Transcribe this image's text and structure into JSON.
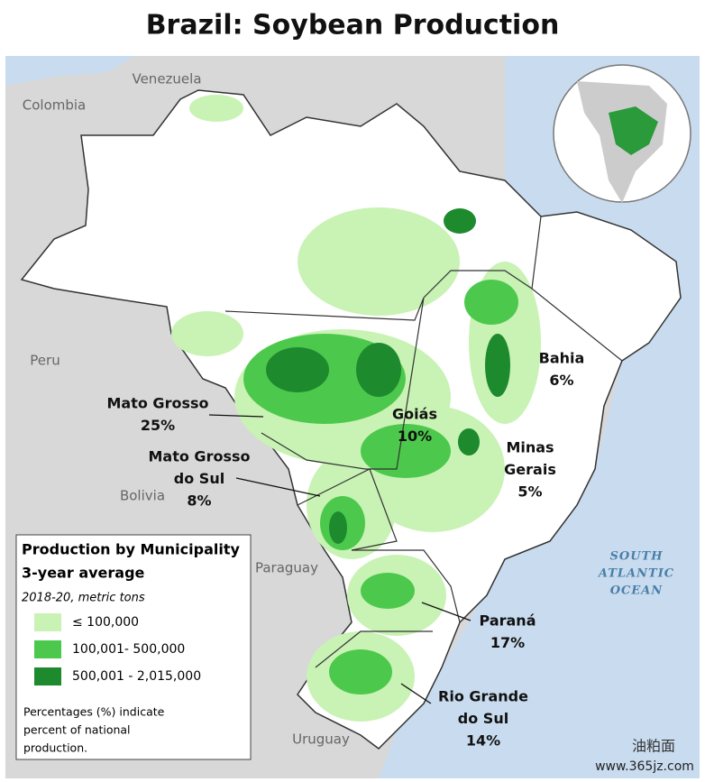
{
  "title": "Brazil: Soybean Production",
  "countries": [
    "Venezuela",
    "Colombia",
    "Peru",
    "Bolivia",
    "Paraguay",
    "Uruguay"
  ],
  "ocean": [
    "SOUTH",
    "ATLANTIC",
    "OCEAN"
  ],
  "states": [
    {
      "name": [
        "Bahia"
      ],
      "share": "6%"
    },
    {
      "name": [
        "Mato Grosso"
      ],
      "share": "25%"
    },
    {
      "name": [
        "Goiás"
      ],
      "share": "10%"
    },
    {
      "name": [
        "Mato Grosso",
        "do Sul"
      ],
      "share": "8%"
    },
    {
      "name": [
        "Minas",
        "Gerais"
      ],
      "share": "5%"
    },
    {
      "name": [
        "Paraná"
      ],
      "share": "17%"
    },
    {
      "name": [
        "Rio Grande",
        "do Sul"
      ],
      "share": "14%"
    }
  ],
  "legend": {
    "title": [
      "Production by Municipality",
      "3-year average"
    ],
    "subtitle": "2018-20, metric tons",
    "items": [
      {
        "label": "≤ 100,000",
        "color": "#c9f2b5"
      },
      {
        "label": "100,001- 500,000",
        "color": "#4cc94c"
      },
      {
        "label": "500,001 - 2,015,000",
        "color": "#1e8a2e"
      }
    ],
    "note": [
      "Percentages (%) indicate",
      "percent of national",
      "production."
    ]
  },
  "watermark": {
    "brand": "油粕面",
    "url": "www.365jz.com"
  }
}
